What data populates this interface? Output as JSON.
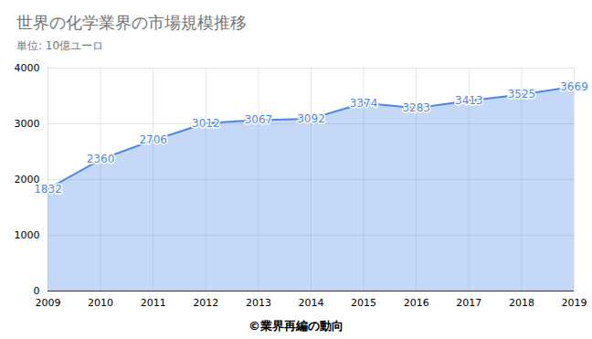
{
  "chart_data": {
    "type": "area",
    "title": "世界の化学業界の市場規模推移",
    "subtitle": "単位: 10億ユーロ",
    "caption": "©業界再編の動向",
    "x": [
      2009,
      2010,
      2011,
      2012,
      2013,
      2014,
      2015,
      2016,
      2017,
      2018,
      2019
    ],
    "values": [
      1832,
      2360,
      2706,
      3012,
      3067,
      3092,
      3374,
      3283,
      3413,
      3525,
      3669
    ],
    "color": "#4a86e8",
    "xlim": [
      2009,
      2019
    ],
    "xticks": [
      2009,
      2010,
      2011,
      2012,
      2013,
      2014,
      2015,
      2016,
      2017,
      2018,
      2019
    ],
    "ylim": [
      0,
      4000
    ],
    "yticks": [
      0,
      1000,
      2000,
      3000,
      4000
    ],
    "grid": true,
    "data_labels": true
  }
}
